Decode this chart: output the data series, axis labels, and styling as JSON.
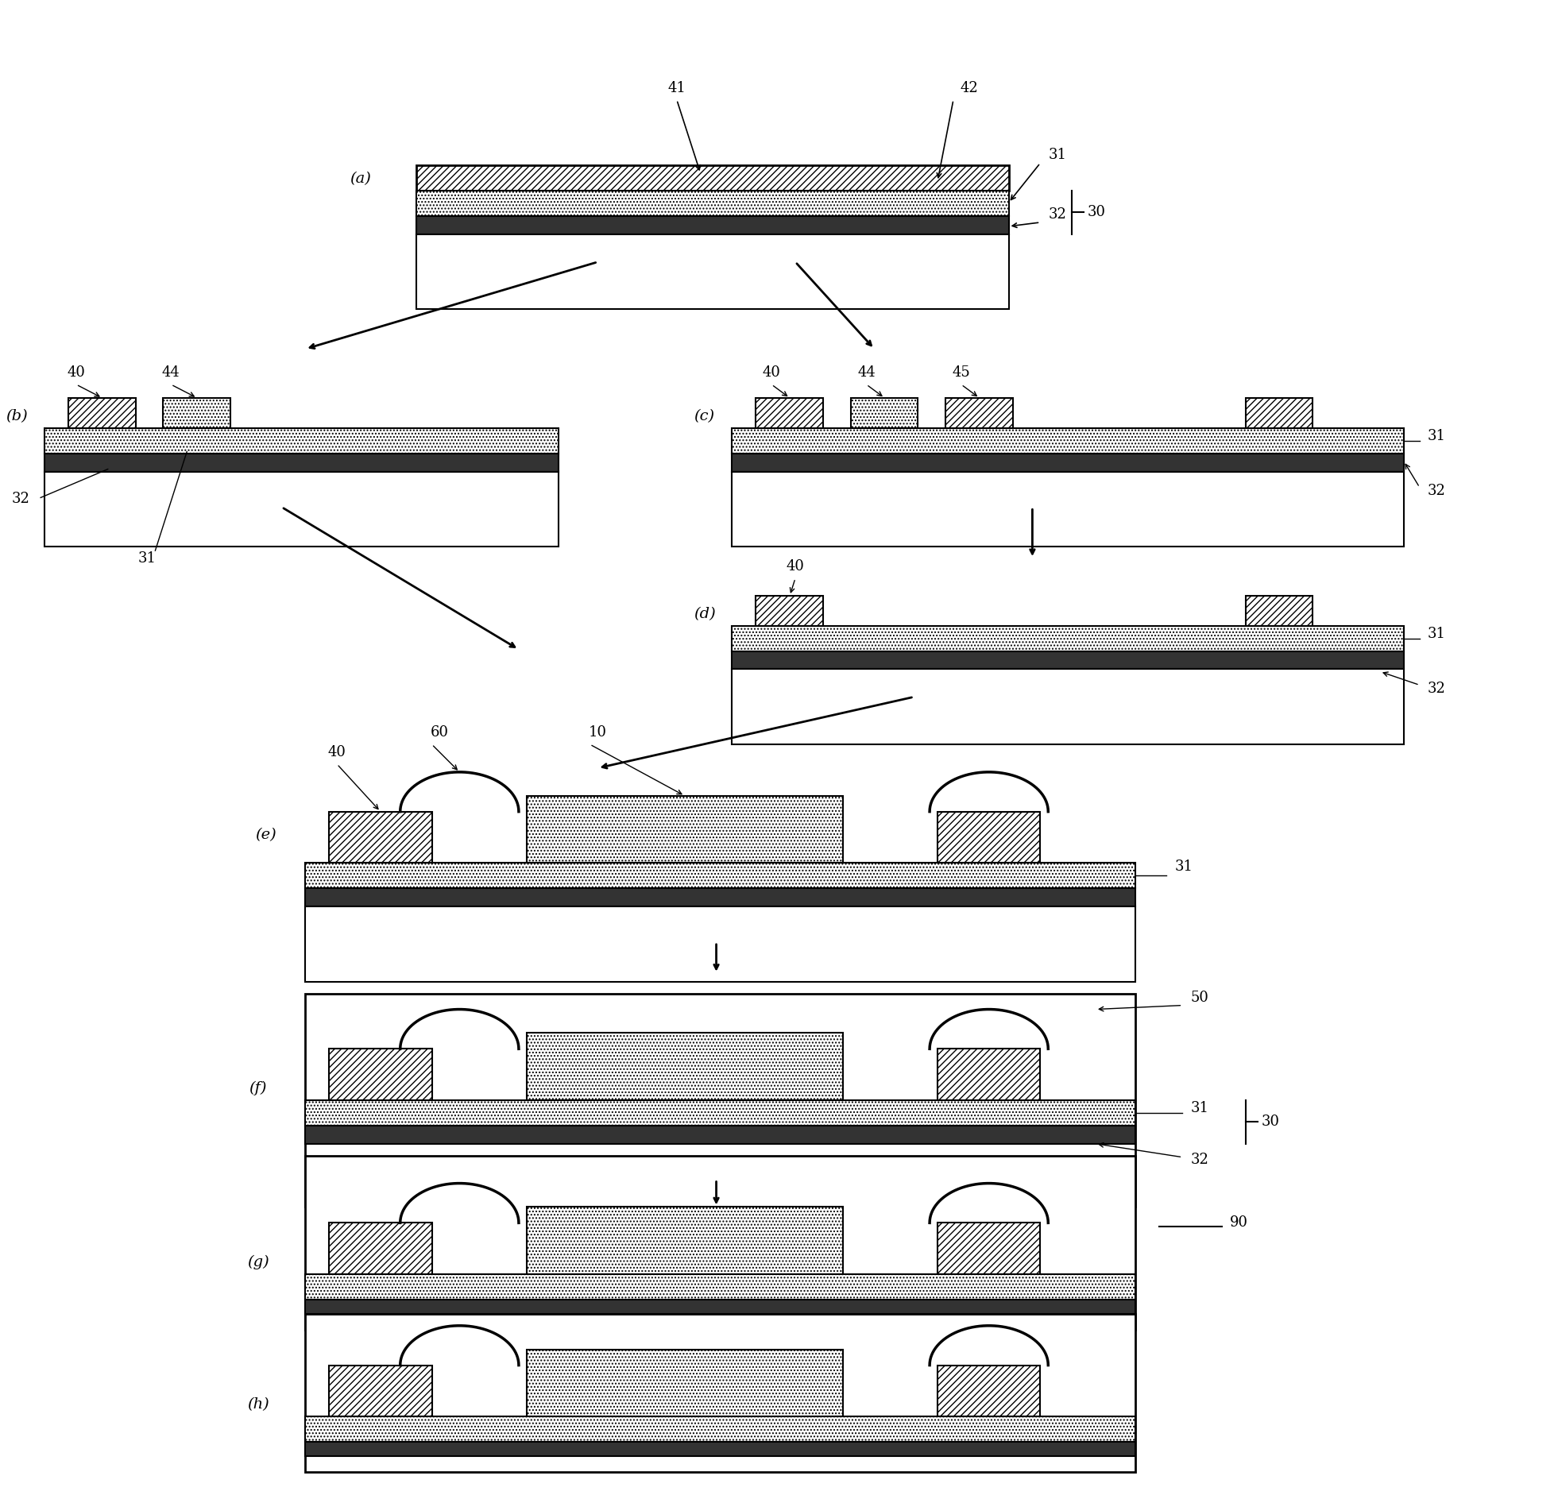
{
  "bg_color": "#ffffff",
  "line_color": "#000000",
  "hatch_diagonal": "////",
  "hatch_dots": "....",
  "dark_color": "#333333",
  "labels": {
    "a": "(a)",
    "b": "(b)",
    "c": "(c)",
    "d": "(d)",
    "e": "(e)",
    "f": "(f)",
    "g": "(g)",
    "h": "(h)"
  },
  "numbers": [
    "41",
    "42",
    "31",
    "32",
    "30",
    "40",
    "44",
    "45",
    "10",
    "60",
    "50",
    "90"
  ]
}
